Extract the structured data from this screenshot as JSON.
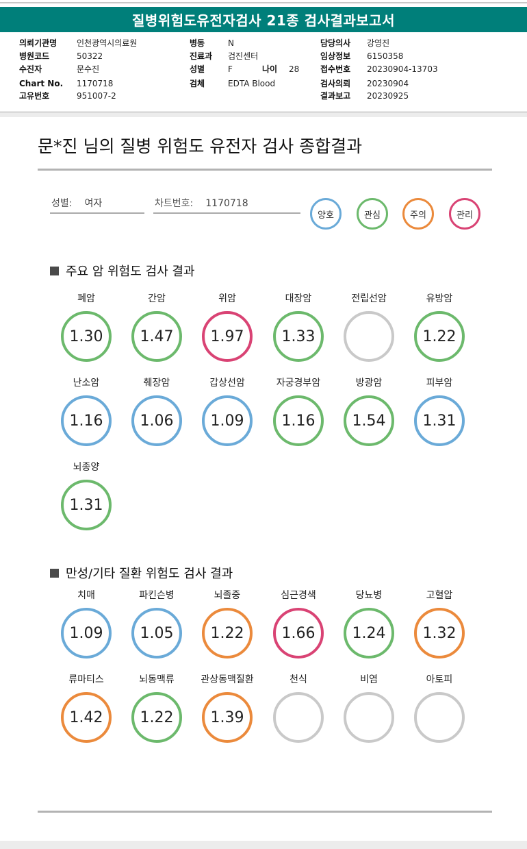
{
  "report_title": "질병위험도유전자검사 21종 검사결과보고서",
  "header_info": [
    {
      "label": "의뢰기관명",
      "value": "인천광역시의료원"
    },
    {
      "label": "병원코드",
      "value": "50322"
    },
    {
      "label": "수진자",
      "value": "문수진"
    },
    {
      "label": "Chart No.",
      "value": "1170718"
    },
    {
      "label": "고유번호",
      "value": "951007-2"
    },
    {
      "label": "병동",
      "value": "N"
    },
    {
      "label": "진료과",
      "value": "검진센터"
    },
    {
      "label": "성별",
      "value": "F"
    },
    {
      "label": "나이",
      "value": "28"
    },
    {
      "label": "검체",
      "value": "EDTA Blood"
    },
    {
      "label": "담당의사",
      "value": "강영진"
    },
    {
      "label": "임상정보",
      "value": "6150358"
    },
    {
      "label": "접수번호",
      "value": "20230904-13703"
    },
    {
      "label": "검사의뢰",
      "value": "20230904"
    },
    {
      "label": "결과보고",
      "value": "20230925"
    }
  ],
  "main_title": "문*진 님의 질병 위험도 유전자 검사 종합결과",
  "patient_fields": [
    {
      "label": "성별:",
      "value": "여자"
    },
    {
      "label": "차트번호:",
      "value": "1170718"
    }
  ],
  "legend": [
    {
      "label": "양호",
      "color": "#6aaad8"
    },
    {
      "label": "관심",
      "color": "#6cb96c"
    },
    {
      "label": "주의",
      "color": "#eb8a3c"
    },
    {
      "label": "관리",
      "color": "#d94374"
    }
  ],
  "colors": {
    "teal": "#007f7a",
    "good": "#6aaad8",
    "interest": "#6cb96c",
    "caution": "#eb8a3c",
    "manage": "#d94374",
    "none": "#c9c9c9"
  },
  "sections": [
    {
      "title": "주요 암 위험도 검사 결과",
      "items": [
        {
          "name": "폐암",
          "value": "1.30",
          "level": "interest"
        },
        {
          "name": "간암",
          "value": "1.47",
          "level": "interest"
        },
        {
          "name": "위암",
          "value": "1.97",
          "level": "manage"
        },
        {
          "name": "대장암",
          "value": "1.33",
          "level": "interest"
        },
        {
          "name": "전립선암",
          "value": "",
          "level": "none"
        },
        {
          "name": "유방암",
          "value": "1.22",
          "level": "interest"
        },
        {
          "name": "난소암",
          "value": "1.16",
          "level": "good"
        },
        {
          "name": "췌장암",
          "value": "1.06",
          "level": "good"
        },
        {
          "name": "갑상선암",
          "value": "1.09",
          "level": "good"
        },
        {
          "name": "자궁경부암",
          "value": "1.16",
          "level": "interest"
        },
        {
          "name": "방광암",
          "value": "1.54",
          "level": "interest"
        },
        {
          "name": "피부암",
          "value": "1.31",
          "level": "good"
        },
        {
          "name": "뇌종양",
          "value": "1.31",
          "level": "interest"
        }
      ]
    },
    {
      "title": "만성/기타 질환 위험도 검사 결과",
      "items": [
        {
          "name": "치매",
          "value": "1.09",
          "level": "good"
        },
        {
          "name": "파킨슨병",
          "value": "1.05",
          "level": "good"
        },
        {
          "name": "뇌졸중",
          "value": "1.22",
          "level": "caution"
        },
        {
          "name": "심근경색",
          "value": "1.66",
          "level": "manage"
        },
        {
          "name": "당뇨병",
          "value": "1.24",
          "level": "interest"
        },
        {
          "name": "고혈압",
          "value": "1.32",
          "level": "caution"
        },
        {
          "name": "류마티스",
          "value": "1.42",
          "level": "caution"
        },
        {
          "name": "뇌동맥류",
          "value": "1.22",
          "level": "interest"
        },
        {
          "name": "관상동맥질환",
          "value": "1.39",
          "level": "caution"
        },
        {
          "name": "천식",
          "value": "",
          "level": "none"
        },
        {
          "name": "비염",
          "value": "",
          "level": "none"
        },
        {
          "name": "아토피",
          "value": "",
          "level": "none"
        }
      ]
    }
  ]
}
